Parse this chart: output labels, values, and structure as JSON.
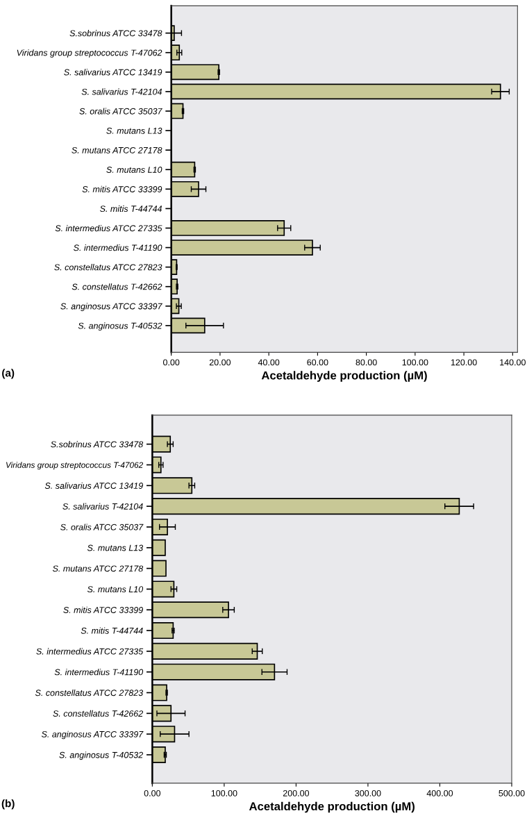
{
  "chart_data": [
    {
      "type": "bar",
      "orientation": "horizontal",
      "xlabel": "Acetaldehyde production (µM)",
      "annotations": [
        "(a)"
      ],
      "categories": [
        "S.sobrinus ATCC 33478",
        "Viridans group streptococcus T-47062",
        "S. salivarius ATCC 13419",
        "S. salivarius T-42104",
        "S. oralis ATCC 35037",
        "S. mutans L13",
        "S. mutans ATCC 27178",
        "S. mutans L10",
        "S. mitis ATCC 33399",
        "S. mitis T-44744",
        "S. intermedius ATCC 27335",
        "S. intermedius T-41190",
        "S. constellatus ATCC 27823",
        "S. constellatus T-42662",
        "S. anginosus ATCC 33397",
        "S. anginosus T-40532"
      ],
      "values": [
        1.2,
        3.3,
        19.5,
        135,
        4.8,
        0,
        0,
        9.6,
        11.2,
        0,
        46.3,
        57.9,
        2.2,
        2.4,
        3.1,
        13.7
      ],
      "errors": [
        3,
        1,
        0.3,
        3.6,
        0.3,
        null,
        null,
        0.3,
        3,
        null,
        2.7,
        3.2,
        0.2,
        0.3,
        1,
        7.7
      ],
      "color": "#c8c896",
      "xlim": [
        0,
        142
      ],
      "xticks": [
        {
          "value": 0,
          "label": "0.00"
        },
        {
          "value": 20,
          "label": "20.00"
        },
        {
          "value": 40,
          "label": "40.00"
        },
        {
          "value": 60,
          "label": "60.00"
        },
        {
          "value": 80,
          "label": "80.00"
        },
        {
          "value": 100,
          "label": "100.00"
        },
        {
          "value": 120,
          "label": "120.00"
        },
        {
          "value": 140,
          "label": "140.00"
        }
      ],
      "grid": false,
      "legend": false
    },
    {
      "type": "bar",
      "orientation": "horizontal",
      "xlabel": "Acetaldehyde production (µM)",
      "annotations": [
        "(b)"
      ],
      "categories": [
        "S.sobrinus ATCC 33478",
        "Viridans group streptococcus T-47062",
        "S. salivarius ATCC 13419",
        "S. salivarius T-42104",
        "S. oralis ATCC 35037",
        "S. mutans L13",
        "S. mutans ATCC 27178",
        "S. mutans L10",
        "S. mitis ATCC 33399",
        "S. mitis T-44744",
        "S. intermedius ATCC 27335",
        "S. intermedius T-41190",
        "S. constellatus ATCC 27823",
        "S. constellatus T-42662",
        "S. anginosus ATCC 33397",
        "S. anginosus T-40532"
      ],
      "values": [
        25,
        12,
        55,
        427,
        21,
        18,
        19,
        30,
        106,
        29,
        146,
        170,
        20,
        26,
        31,
        18
      ],
      "errors": [
        4,
        3,
        4,
        20,
        11,
        null,
        null,
        4,
        8,
        1.5,
        7,
        17.5,
        1,
        19.6,
        20,
        1.5
      ],
      "color": "#c8c896",
      "xlim": [
        0,
        500
      ],
      "xticks": [
        {
          "value": 0,
          "label": "0.00"
        },
        {
          "value": 100,
          "label": "100.00"
        },
        {
          "value": 200,
          "label": "200.00"
        },
        {
          "value": 300,
          "label": "300.00"
        },
        {
          "value": 400,
          "label": "400.00"
        },
        {
          "value": 500,
          "label": "500.00"
        }
      ],
      "grid": false,
      "legend": false
    }
  ]
}
